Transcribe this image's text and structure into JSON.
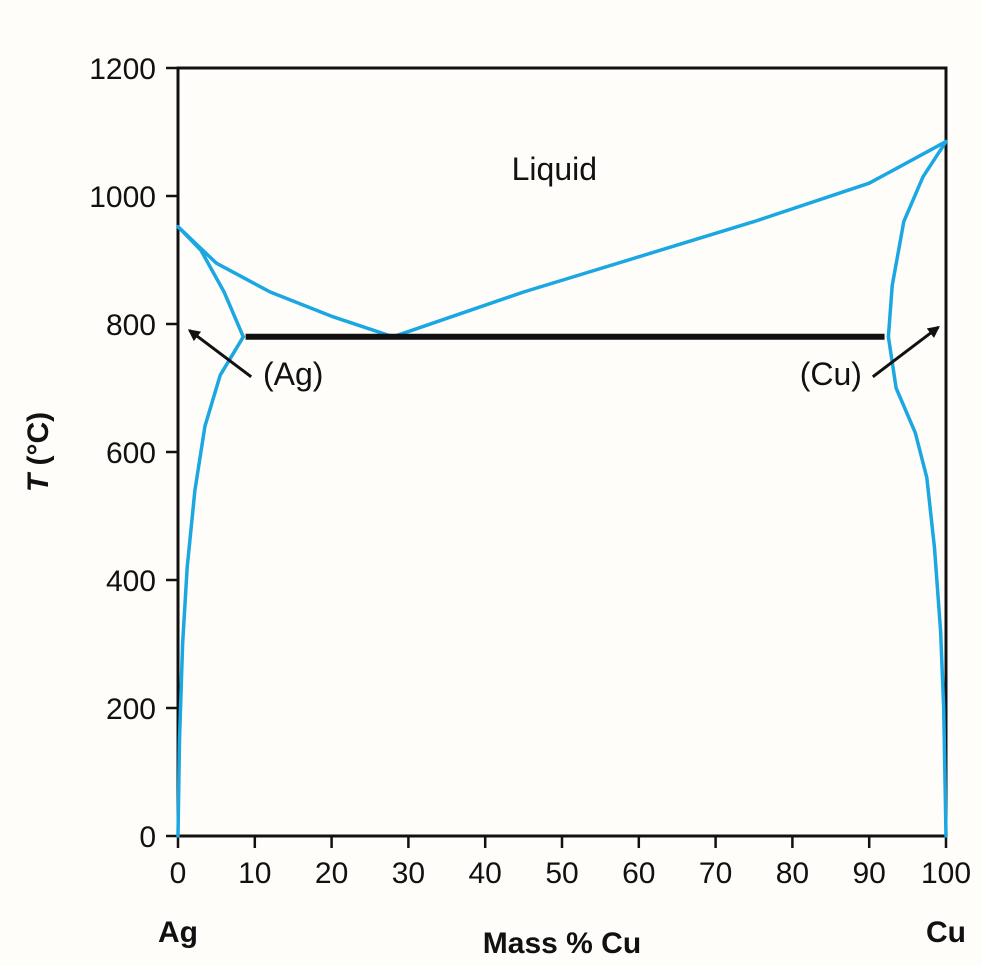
{
  "chart_data": {
    "type": "line",
    "title": "",
    "xlabel": "Mass % Cu",
    "ylabel_italic": "T",
    "ylabel_rest": " (°C)",
    "xlim": [
      0,
      100
    ],
    "ylim": [
      0,
      1200
    ],
    "x_ticks": [
      0,
      10,
      20,
      30,
      40,
      50,
      60,
      70,
      80,
      90,
      100
    ],
    "x_tick_labels": [
      "0",
      "10",
      "20",
      "30",
      "40",
      "50",
      "60",
      "70",
      "80",
      "90",
      "100"
    ],
    "y_ticks": [
      0,
      200,
      400,
      600,
      800,
      1000,
      1200
    ],
    "y_tick_labels": [
      "0",
      "200",
      "400",
      "600",
      "800",
      "1000",
      "1200"
    ],
    "end_labels": {
      "left": "Ag",
      "right": "Cu"
    },
    "line_color": "#1aa7e2",
    "eutectic_color": "#111111",
    "series": [
      {
        "id": "liquidus-ag",
        "points": [
          [
            0,
            952
          ],
          [
            5,
            895
          ],
          [
            12,
            850
          ],
          [
            20,
            812
          ],
          [
            28,
            780
          ]
        ]
      },
      {
        "id": "liquidus-cu",
        "points": [
          [
            28,
            780
          ],
          [
            45,
            850
          ],
          [
            60,
            905
          ],
          [
            75,
            960
          ],
          [
            90,
            1020
          ],
          [
            100,
            1085
          ]
        ]
      },
      {
        "id": "solidus-ag",
        "points": [
          [
            0,
            952
          ],
          [
            3,
            915
          ],
          [
            6,
            850
          ],
          [
            8.5,
            780
          ]
        ]
      },
      {
        "id": "solvus-ag",
        "points": [
          [
            8.5,
            780
          ],
          [
            5.5,
            720
          ],
          [
            3.5,
            640
          ],
          [
            2.2,
            540
          ],
          [
            1.2,
            420
          ],
          [
            0.6,
            300
          ],
          [
            0.2,
            150
          ],
          [
            0,
            0
          ]
        ]
      },
      {
        "id": "solidus-cu",
        "points": [
          [
            100,
            1085
          ],
          [
            97,
            1030
          ],
          [
            94.5,
            960
          ],
          [
            93,
            860
          ],
          [
            92.5,
            780
          ]
        ]
      },
      {
        "id": "solvus-cu",
        "points": [
          [
            92.5,
            780
          ],
          [
            93.5,
            700
          ],
          [
            96,
            630
          ],
          [
            97.5,
            560
          ],
          [
            98.5,
            450
          ],
          [
            99.3,
            320
          ],
          [
            99.7,
            200
          ],
          [
            100,
            0
          ]
        ]
      }
    ],
    "eutectic": {
      "x_start": 8.8,
      "x_end": 92,
      "y": 780
    },
    "annotations": [
      {
        "text": "Liquid",
        "x": 49,
        "y": 1025
      },
      {
        "text": "(Ag)",
        "x": 15,
        "y": 705,
        "arrow_to": [
          1.5,
          790
        ]
      },
      {
        "text": "(Cu)",
        "x": 85,
        "y": 705,
        "arrow_to": [
          99,
          795
        ]
      }
    ]
  }
}
